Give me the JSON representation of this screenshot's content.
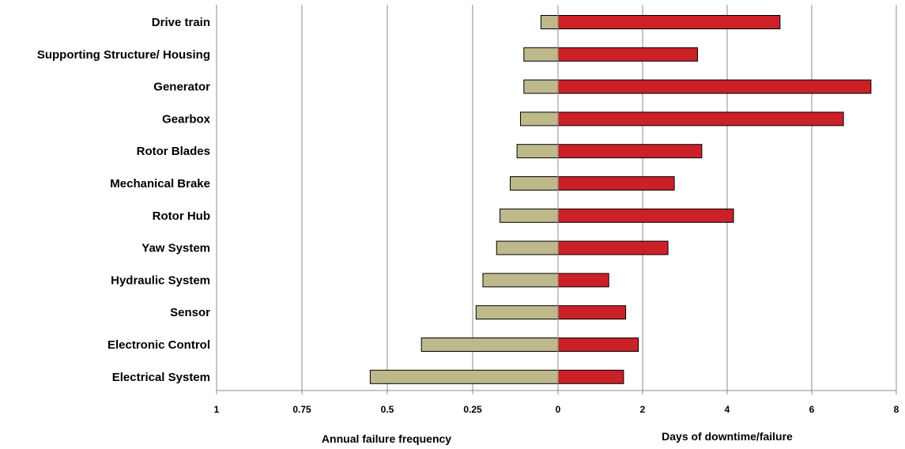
{
  "chart_data": {
    "type": "bar",
    "orientation": "horizontal",
    "layout": "back-to-back",
    "categories": [
      "Drive train",
      "Supporting Structure/ Housing",
      "Generator",
      "Gearbox",
      "Rotor Blades",
      "Mechanical Brake",
      "Rotor Hub",
      "Yaw System",
      "Hydraulic System",
      "Sensor",
      "Electronic Control",
      "Electrical System"
    ],
    "left": {
      "xlabel": "Annual failure frequency",
      "ticks": [
        "1",
        "0.75",
        "0.5",
        "0.25",
        "0"
      ],
      "xlim": [
        1,
        0
      ],
      "color": "#bdb98a",
      "values": [
        0.05,
        0.1,
        0.1,
        0.11,
        0.12,
        0.14,
        0.17,
        0.18,
        0.22,
        0.24,
        0.4,
        0.55
      ]
    },
    "right": {
      "xlabel": "Days of downtime/failure",
      "ticks": [
        "0",
        "2",
        "4",
        "6",
        "8"
      ],
      "xlim": [
        0,
        8
      ],
      "color": "#cc2029",
      "values": [
        5.25,
        3.3,
        7.4,
        6.75,
        3.4,
        2.75,
        4.15,
        2.6,
        1.2,
        1.6,
        1.9,
        1.55
      ]
    },
    "grid": "vertical"
  }
}
